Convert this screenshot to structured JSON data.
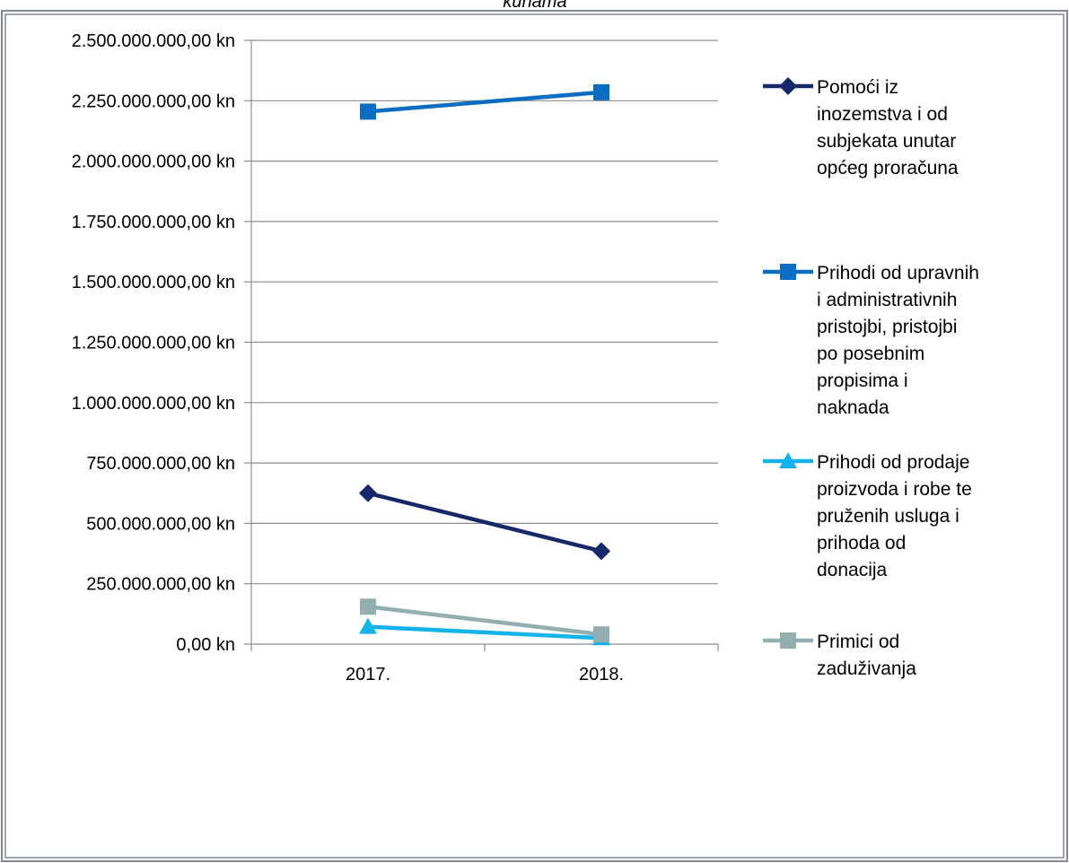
{
  "chart_data": {
    "type": "line",
    "title": "kunama",
    "categories": [
      "2017.",
      "2018."
    ],
    "ylim": [
      0,
      2500000000
    ],
    "ytick_step": 250000000,
    "ytick_labels": [
      "0,00 kn",
      "250.000.000,00 kn",
      "500.000.000,00 kn",
      "750.000.000,00 kn",
      "1.000.000.000,00 kn",
      "1.250.000.000,00 kn",
      "1.500.000.000,00 kn",
      "1.750.000.000,00 kn",
      "2.000.000.000,00 kn",
      "2.250.000.000,00 kn",
      "2.500.000.000,00 kn"
    ],
    "grid": true,
    "legend_position": "right",
    "series": [
      {
        "name": "Pomoći iz inozemstva i od subjekata unutar općeg proračuna",
        "legend_lines": [
          "Pomoći iz",
          "inozemstva i od",
          "subjekata unutar",
          "općeg proračuna"
        ],
        "values": [
          625000000,
          385000000
        ],
        "color": "#14286a",
        "marker": "diamond"
      },
      {
        "name": "Prihodi od upravnih i administrativnih pristojbi, pristojbi po posebnim propisima i naknada",
        "legend_lines": [
          "Prihodi od upravnih",
          "i administrativnih",
          "pristojbi, pristojbi",
          "po posebnim",
          "propisima i",
          "naknada"
        ],
        "values": [
          2205000000,
          2285000000
        ],
        "color": "#0a6dc2",
        "marker": "square"
      },
      {
        "name": "Prihodi od prodaje proizvoda i robe te pruženih usluga i prihoda od donacija",
        "legend_lines": [
          "Prihodi od prodaje",
          "proizvoda i robe te",
          "pruženih usluga i",
          "prihoda od",
          "donacija"
        ],
        "values": [
          72000000,
          25000000
        ],
        "color": "#12b2ea",
        "marker": "triangle"
      },
      {
        "name": "Primici od zaduživanja",
        "legend_lines": [
          "Primici od",
          "zaduživanja"
        ],
        "values": [
          155000000,
          40000000
        ],
        "color": "#92aeb0",
        "marker": "square"
      }
    ]
  }
}
